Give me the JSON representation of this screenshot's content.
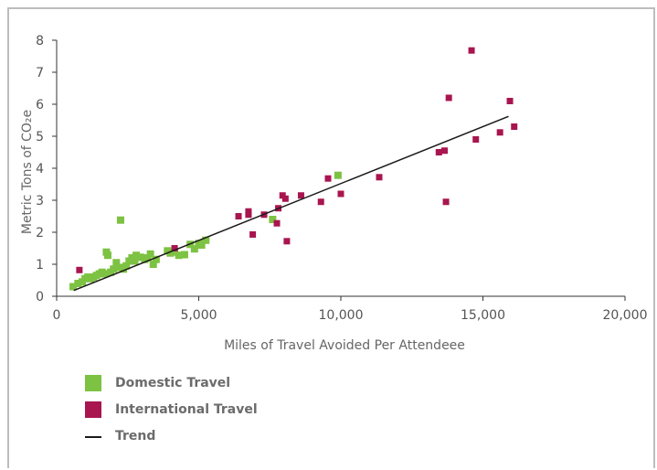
{
  "chart_data": {
    "type": "scatter",
    "xlabel": "Miles of Travel Avoided Per Attendeee",
    "ylabel": "Metric Tons of CO₂e",
    "xlim": [
      0,
      20000
    ],
    "ylim": [
      0,
      8
    ],
    "x_ticks": [
      "0",
      "5,000",
      "10,000",
      "15,000",
      "20,000"
    ],
    "y_ticks": [
      "0",
      "1",
      "2",
      "3",
      "4",
      "5",
      "6",
      "7",
      "8"
    ],
    "grid": false,
    "legend_position": "bottom-left",
    "colors": {
      "domestic": "#7dc242",
      "international": "#a8154f",
      "trend": "#1a1a1a"
    },
    "series": [
      {
        "name": "Domestic Travel",
        "points": [
          [
            580,
            0.3
          ],
          [
            750,
            0.4
          ],
          [
            900,
            0.45
          ],
          [
            1000,
            0.55
          ],
          [
            1100,
            0.6
          ],
          [
            1200,
            0.55
          ],
          [
            1300,
            0.6
          ],
          [
            1400,
            0.65
          ],
          [
            1500,
            0.7
          ],
          [
            1600,
            0.75
          ],
          [
            1700,
            0.7
          ],
          [
            1750,
            1.38
          ],
          [
            1800,
            1.28
          ],
          [
            1900,
            0.75
          ],
          [
            2000,
            0.85
          ],
          [
            2100,
            1.05
          ],
          [
            2200,
            0.9
          ],
          [
            2250,
            2.38
          ],
          [
            2350,
            0.85
          ],
          [
            2450,
            0.95
          ],
          [
            2550,
            1.1
          ],
          [
            2650,
            1.2
          ],
          [
            2750,
            1.1
          ],
          [
            2800,
            1.28
          ],
          [
            2950,
            1.22
          ],
          [
            3100,
            1.15
          ],
          [
            3200,
            1.2
          ],
          [
            3300,
            1.32
          ],
          [
            3400,
            1.0
          ],
          [
            3500,
            1.15
          ],
          [
            3900,
            1.42
          ],
          [
            4000,
            1.35
          ],
          [
            4150,
            1.38
          ],
          [
            4300,
            1.28
          ],
          [
            4500,
            1.3
          ],
          [
            4700,
            1.62
          ],
          [
            4850,
            1.48
          ],
          [
            5000,
            1.65
          ],
          [
            5100,
            1.6
          ],
          [
            5250,
            1.75
          ],
          [
            7600,
            2.4
          ],
          [
            9900,
            3.78
          ]
        ]
      },
      {
        "name": "International Travel",
        "points": [
          [
            800,
            0.82
          ],
          [
            4150,
            1.5
          ],
          [
            6400,
            2.5
          ],
          [
            6750,
            2.55
          ],
          [
            6750,
            2.65
          ],
          [
            6900,
            1.93
          ],
          [
            7300,
            2.55
          ],
          [
            7750,
            2.28
          ],
          [
            7800,
            2.75
          ],
          [
            7950,
            3.15
          ],
          [
            8050,
            3.05
          ],
          [
            8100,
            1.72
          ],
          [
            8600,
            3.15
          ],
          [
            9300,
            2.95
          ],
          [
            9550,
            3.68
          ],
          [
            10000,
            3.2
          ],
          [
            11350,
            3.72
          ],
          [
            13450,
            4.5
          ],
          [
            13650,
            4.55
          ],
          [
            13700,
            2.95
          ],
          [
            13800,
            6.2
          ],
          [
            14600,
            7.68
          ],
          [
            14750,
            4.9
          ],
          [
            15600,
            5.12
          ],
          [
            15950,
            6.1
          ],
          [
            16100,
            5.3
          ]
        ]
      }
    ],
    "trend": {
      "name": "Trend",
      "from": [
        600,
        0.18
      ],
      "to": [
        15900,
        5.62
      ]
    }
  }
}
